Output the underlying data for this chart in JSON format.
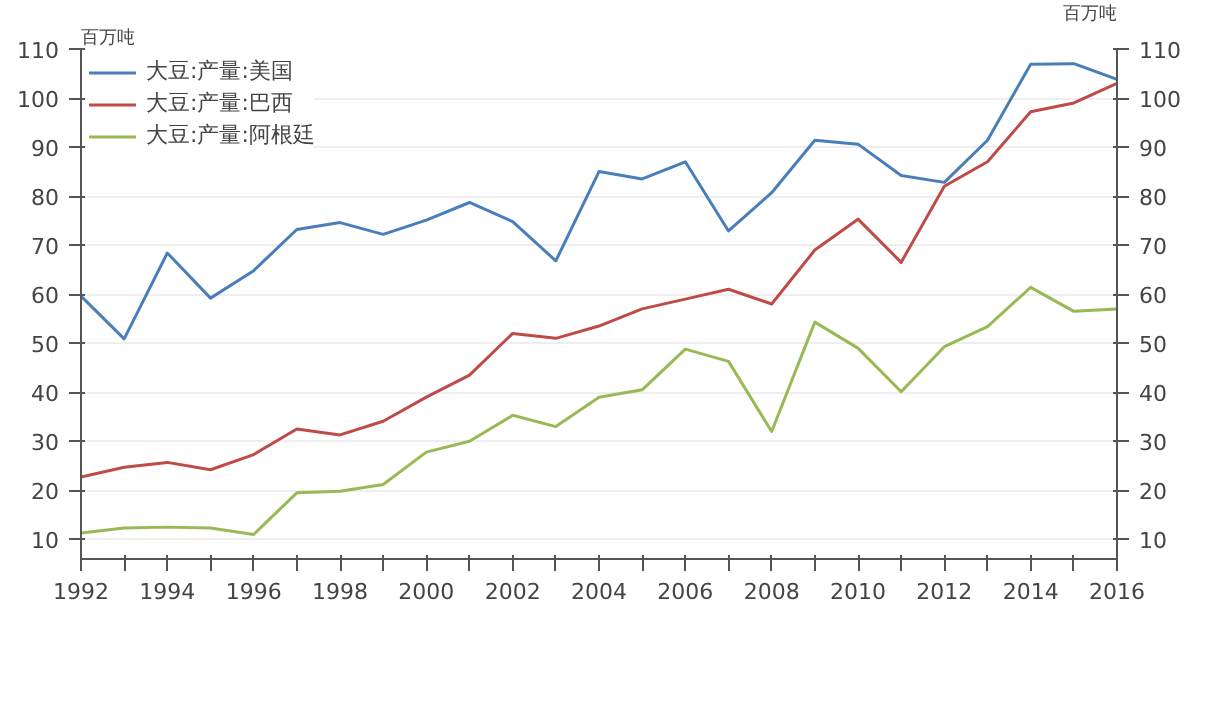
{
  "chart_data": {
    "type": "line",
    "ylabel": "百万吨",
    "y2label": "百万吨",
    "x": [
      1992,
      1993,
      1994,
      1995,
      1996,
      1997,
      1998,
      1999,
      2000,
      2001,
      2002,
      2003,
      2004,
      2005,
      2006,
      2007,
      2008,
      2009,
      2010,
      2011,
      2012,
      2013,
      2014,
      2015,
      2016
    ],
    "series": [
      {
        "name": "大豆:产量:美国",
        "color": "#4a7ebb",
        "values": [
          59.6,
          50.9,
          68.4,
          59.2,
          64.8,
          73.2,
          74.6,
          72.2,
          75.1,
          78.7,
          74.8,
          66.8,
          85,
          83.5,
          87,
          72.9,
          80.7,
          91.4,
          90.6,
          84.2,
          82.8,
          91.4,
          106.9,
          107,
          103.8
        ]
      },
      {
        "name": "大豆:产量:巴西",
        "color": "#be4b48",
        "values": [
          22.7,
          24.7,
          25.7,
          24.2,
          27.3,
          32.5,
          31.3,
          34.1,
          39,
          43.5,
          52,
          51,
          53.5,
          57,
          59,
          61,
          58,
          69,
          75.3,
          66.5,
          82,
          87,
          97.2,
          99,
          103
        ]
      },
      {
        "name": "大豆:产量:阿根廷",
        "color": "#98b954",
        "values": [
          11.3,
          12.3,
          12.5,
          12.3,
          11,
          19.5,
          19.8,
          21.2,
          27.8,
          30,
          35.3,
          33,
          39,
          40.5,
          48.8,
          46.3,
          32,
          54.3,
          49,
          40.1,
          49.3,
          53.4,
          61.4,
          56.5,
          57
        ]
      }
    ],
    "xlim": [
      1992,
      2016
    ],
    "xticks": [
      1992,
      {
        "value": 1993,
        "label": null
      },
      1994,
      {
        "value": 1995,
        "label": null
      },
      1996,
      {
        "value": 1997,
        "label": null
      },
      1998,
      {
        "value": 1999,
        "label": null
      },
      2000,
      {
        "value": 2001,
        "label": null
      },
      2002,
      {
        "value": 2003,
        "label": null
      },
      2004,
      {
        "value": 2005,
        "label": null
      },
      2006,
      {
        "value": 2007,
        "label": null
      },
      2008,
      {
        "value": 2009,
        "label": null
      },
      2010,
      {
        "value": 2011,
        "label": null
      },
      2012,
      {
        "value": 2013,
        "label": null
      },
      2014,
      {
        "value": 2015,
        "label": null
      },
      2016
    ],
    "ylim": [
      6,
      110
    ],
    "yticks": [
      10,
      20,
      30,
      40,
      50,
      60,
      70,
      80,
      90,
      100,
      110
    ],
    "y2lim": [
      6,
      110
    ],
    "y2ticks": [
      10,
      20,
      30,
      40,
      50,
      60,
      70,
      80,
      90,
      100,
      110
    ],
    "grid": "y",
    "legend": "top left",
    "marker": "none",
    "line_style": "solid"
  }
}
